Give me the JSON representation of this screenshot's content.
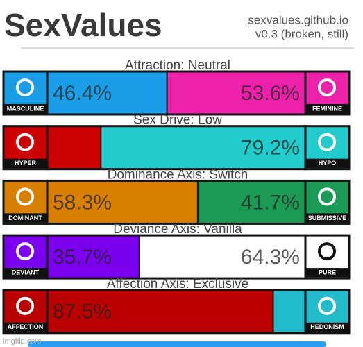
{
  "header": {
    "title": "SexValues",
    "site": "sexvalues.github.io",
    "version": "v0.3 (broken, still)"
  },
  "axes": [
    {
      "title": "Attraction: Neutral",
      "left": {
        "label": "MASCULINE",
        "color": "#1a9ee8",
        "value": 46.4,
        "value_label": "46.4%"
      },
      "right": {
        "label": "FEMININE",
        "color": "#ee22aa",
        "value": 53.6,
        "value_label": "53.6%"
      }
    },
    {
      "title": "Sex Drive: Low",
      "left": {
        "label": "HYPER",
        "color": "#cc0000",
        "value": 20.8
      },
      "right": {
        "label": "HYPO",
        "color": "#22cccc",
        "value": 79.2,
        "value_label": "79.2%"
      }
    },
    {
      "title": "Dominance Axis: Switch",
      "left": {
        "label": "DOMINANT",
        "color": "#d97f00",
        "value": 58.3,
        "value_label": "58.3%"
      },
      "right": {
        "label": "SUBMISSIVE",
        "color": "#1a9a55",
        "value": 41.7,
        "value_label": "41.7%"
      }
    },
    {
      "title": "Deviance Axis: Vanilla",
      "left": {
        "label": "DEVIANT",
        "color": "#7a00ee",
        "value": 35.7,
        "value_label": "35.7%"
      },
      "right": {
        "label": "PURE",
        "color": "#ffffff",
        "value": 64.3,
        "value_label": "64.3%"
      }
    },
    {
      "title": "Affection Axis: Exclusive",
      "left": {
        "label": "AFFECTION",
        "color": "#bb0000",
        "value": 87.5,
        "value_label": "87.5%"
      },
      "right": {
        "label": "HEDONISM",
        "color": "#22bbcc",
        "value": 12.5
      }
    }
  ],
  "watermark": "imgflip.com"
}
